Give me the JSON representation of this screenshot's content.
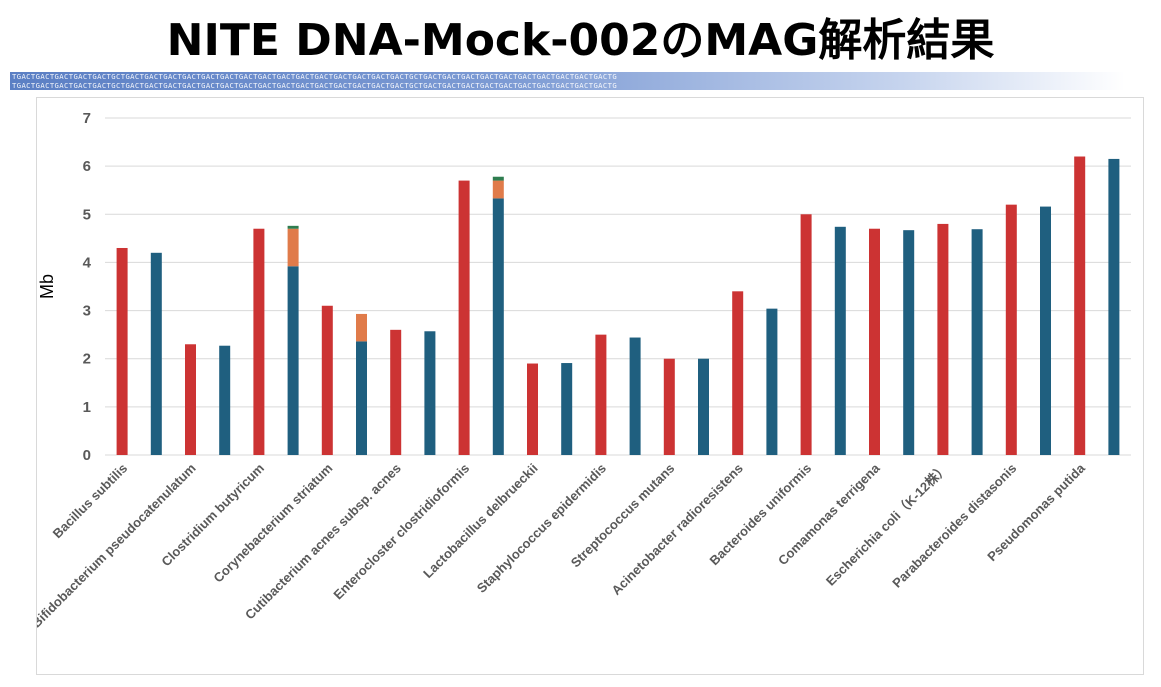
{
  "title": "NITE DNA-Mock-002のMAG解析結果",
  "dna_banner": {
    "line1": "TGACTGACTGACTGACTGACTGCTGACTGACTGACTGACTGACTGACTGACTGACTGACTGACTGACTGACTGACTGACTGACTGCTGACTGACTGACTGACTGACTGACTGACTGACTGACTGACTG",
    "line2": "TGACTGACTGACTGACTGACTGCTGACTGACTGACTGACTGACTGACTGACTGACTGACTGACTGACTGACTGACTGACTGACTGCTGACTGACTGACTGACTGACTGACTGACTGACTGACTGACTG"
  },
  "colors": {
    "red": "#cc3333",
    "blue": "#1f5f7f",
    "orange": "#e07b4a",
    "green": "#2e7d4f",
    "grid": "#d9d9d9",
    "axis_text": "#595959"
  },
  "chart_data": {
    "type": "bar",
    "stacked": true,
    "ylabel": "Mb",
    "ylim": [
      0,
      7
    ],
    "yticks": [
      0,
      1,
      2,
      3,
      4,
      5,
      6,
      7
    ],
    "grid": true,
    "categories": [
      "Bacillus subtilis",
      "",
      "Bifidobacterium pseudocatenulatum",
      "",
      "Clostridium butyricum",
      "",
      "Corynebacterium striatum",
      "",
      "Cutibacterium acnes subsp. acnes",
      "",
      "Enterocloster clostridioformis",
      "",
      "Lactobacillus delbrueckii",
      "",
      "Staphylococcus epidermidis",
      "",
      "Streptococcus mutans",
      "",
      "Acinetobacter radioresistens",
      "",
      "Bacteroides uniformis",
      "",
      "Comamonas terrigena",
      "",
      "Escherichia coli（K-12株）",
      "",
      "Parabacteroides distasonis",
      "",
      "Pseudomonas putida",
      ""
    ],
    "category_labels_shown": [
      "Bacillus subtilis",
      "Bifidobacterium pseudocatenulatum",
      "Clostridium butyricum",
      "Corynebacterium striatum",
      "Cutibacterium acnes subsp. acnes",
      "Enterocloster clostridioformis",
      "Lactobacillus delbrueckii",
      "Staphylococcus epidermidis",
      "Streptococcus mutans",
      "Acinetobacter radioresistens",
      "Bacteroides uniformis",
      "Comamonas terrigena",
      "Escherichia coli（K-12株）",
      "Parabacteroides distasonis",
      "Pseudomonas putida"
    ],
    "series": [
      {
        "color": "#cc3333",
        "values": [
          4.3,
          0,
          2.3,
          0,
          4.7,
          0,
          3.1,
          0,
          2.6,
          0,
          5.7,
          0,
          1.9,
          0,
          2.5,
          0,
          2.0,
          0,
          3.4,
          0,
          5.0,
          0,
          4.7,
          0,
          4.8,
          0,
          5.2,
          0,
          6.2,
          0
        ]
      },
      {
        "color": "#1f5f7f",
        "values": [
          0,
          4.2,
          0,
          2.27,
          0,
          3.92,
          0,
          0,
          0,
          2.57,
          0,
          5.33,
          0,
          1.91,
          0,
          2.44,
          0,
          2.0,
          0,
          3.04,
          0,
          4.74,
          0,
          4.67,
          0,
          4.69,
          0,
          5.16,
          0,
          6.15
        ]
      },
      {
        "color": "#1f5f7f",
        "values": [
          0,
          0,
          0,
          0,
          0,
          0,
          0,
          2.36,
          0,
          0,
          0,
          0,
          0,
          0,
          0,
          0,
          0,
          0,
          0,
          0,
          0,
          0,
          0,
          0,
          0,
          0,
          0,
          0,
          0,
          0
        ]
      },
      {
        "color": "#e07b4a",
        "values": [
          0,
          0,
          0,
          0,
          0,
          0.78,
          0,
          0.57,
          0,
          0,
          0,
          0.37,
          0,
          0,
          0,
          0,
          0,
          0,
          0,
          0,
          0,
          0,
          0,
          0,
          0,
          0,
          0,
          0,
          0,
          0
        ]
      },
      {
        "color": "#2e7d4f",
        "values": [
          0,
          0,
          0,
          0,
          0,
          0.06,
          0,
          0,
          0,
          0,
          0,
          0.08,
          0,
          0,
          0,
          0,
          0,
          0,
          0,
          0,
          0,
          0,
          0,
          0,
          0,
          0,
          0,
          0,
          0,
          0
        ]
      }
    ]
  }
}
